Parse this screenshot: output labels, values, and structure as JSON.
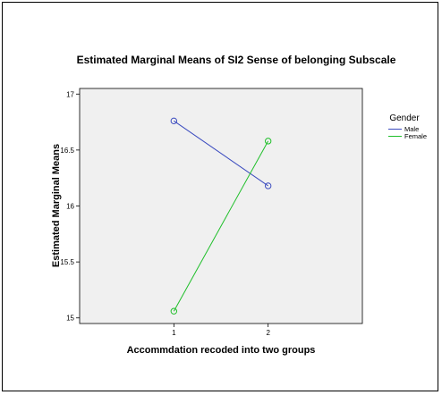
{
  "chart_data": {
    "type": "line",
    "title": "Estimated Marginal Means of SI2 Sense of belonging Subscale",
    "xlabel": "Accommdation recoded into two groups",
    "ylabel": "Estimated Marginal Means",
    "categories": [
      "1",
      "2"
    ],
    "ylim": [
      14.95,
      17.05
    ],
    "yticks": [
      15,
      15.5,
      16,
      16.5,
      17
    ],
    "ytick_labels": [
      "15",
      "15.5",
      "16",
      "16.5",
      "17"
    ],
    "grid": false,
    "plot_background": "#f0f0f0",
    "legend": {
      "title": "Gender",
      "placement": "right"
    },
    "series": [
      {
        "name": "Male",
        "color": "#3b4bbf",
        "values": [
          16.76,
          16.18
        ]
      },
      {
        "name": "Female",
        "color": "#1fbf2a",
        "values": [
          15.06,
          16.58
        ]
      }
    ]
  }
}
